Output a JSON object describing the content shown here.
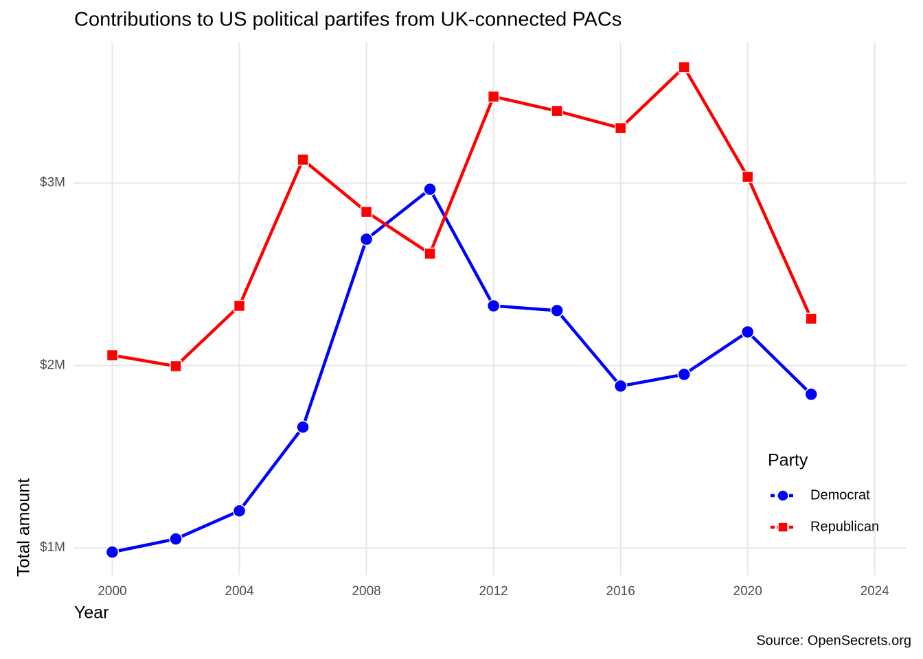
{
  "chart_data": {
    "type": "line",
    "title": "Contributions to US political partifes from UK-connected PACs",
    "x_label": "Year",
    "y_label": "Total amount",
    "caption": "Source: OpenSecrets.org",
    "legend_title": "Party",
    "legend_position": "right",
    "x": [
      2000,
      2002,
      2004,
      2006,
      2008,
      2010,
      2012,
      2014,
      2016,
      2018,
      2020,
      2022
    ],
    "series": [
      {
        "name": "Democrat",
        "color": "#0000ff",
        "marker": "circle",
        "values": [
          977000,
          1049000,
          1203000,
          1662000,
          2692000,
          2966000,
          2327000,
          2301000,
          1887000,
          1951000,
          2184000,
          1842000
        ]
      },
      {
        "name": "Republican",
        "color": "#ff0000",
        "marker": "square",
        "values": [
          2056000,
          1996000,
          2327000,
          3128000,
          2842000,
          2613000,
          3474000,
          3395000,
          3301000,
          3635000,
          3034000,
          2256000
        ]
      }
    ],
    "xlim": [
      1998.8,
      2025.0
    ],
    "xticks": [
      2000,
      2004,
      2008,
      2012,
      2016,
      2020,
      2024
    ],
    "ylim": [
      850000,
      3770000
    ],
    "yticks": [
      {
        "value": 1000000,
        "label": "$1M"
      },
      {
        "value": 2000000,
        "label": "$2M"
      },
      {
        "value": 3000000,
        "label": "$3M"
      }
    ],
    "grid": true
  }
}
